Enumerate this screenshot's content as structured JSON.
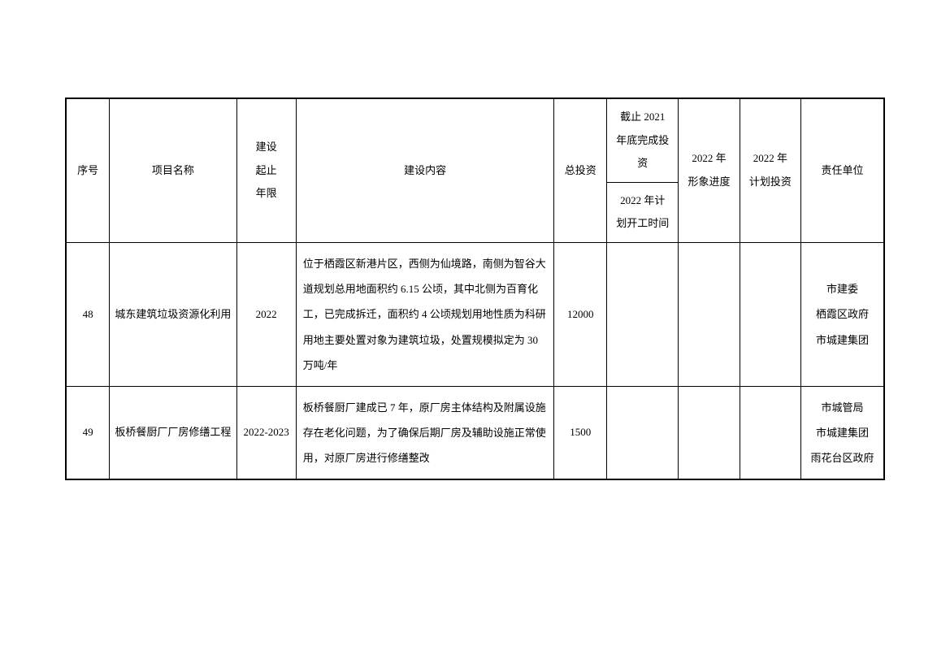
{
  "table": {
    "columns": {
      "seq": "序号",
      "project_name": "项目名称",
      "period": "建设\n起止\n年限",
      "content": "建设内容",
      "total_invest": "总投资",
      "completed_by_2021": "截止 2021\n年底完成投\n资",
      "plan_start_2022": "2022 年计\n划开工时间",
      "progress_2022": "2022 年\n形象进度",
      "plan_invest_2022": "2022 年\n计划投资",
      "responsible": "责任单位"
    },
    "rows": [
      {
        "seq": "48",
        "project_name": "城东建筑垃圾资源化利用",
        "period": "2022",
        "content": "位于栖霞区新港片区，西侧为仙境路，南侧为智谷大道规划总用地面积约 6.15 公顷，其中北侧为百育化工，已完成拆迁，面积约 4 公顷规划用地性质为科研用地主要处置对象为建筑垃圾，处置规模拟定为 30 万吨/年",
        "total_invest": "12000",
        "completed_by_2021": "",
        "plan_start_2022": "",
        "progress_2022": "",
        "plan_invest_2022": "",
        "responsible": "市建委\n栖霞区政府\n市城建集团"
      },
      {
        "seq": "49",
        "project_name": "板桥餐厨厂厂房修缮工程",
        "period": "2022-2023",
        "content": "板桥餐厨厂建成已 7 年，原厂房主体结构及附属设施存在老化问题，为了确保后期厂房及辅助设施正常使用，对原厂房进行修缮整改",
        "total_invest": "1500",
        "completed_by_2021": "",
        "plan_start_2022": "",
        "progress_2022": "",
        "plan_invest_2022": "",
        "responsible": "市城管局\n市城建集团\n雨花台区政府"
      }
    ]
  }
}
